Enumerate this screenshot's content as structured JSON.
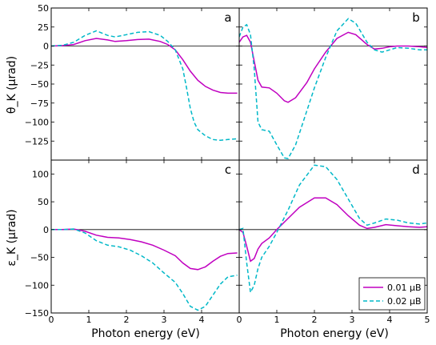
{
  "chart_data": [
    {
      "panel": "a",
      "type": "line",
      "ylabel": "θ_K (μrad)",
      "xlabel": "",
      "xlim": [
        0,
        5
      ],
      "ylim": [
        -150,
        50
      ],
      "xticks": [
        "0",
        "1",
        "2",
        "3",
        "4"
      ],
      "yticks": [
        "50",
        "25",
        "0",
        "−25",
        "−50",
        "−75",
        "−100",
        "−125"
      ],
      "series": [
        {
          "name": "0.01 μB",
          "color": "#c000c0",
          "style": "solid",
          "x": [
            0,
            0.3,
            0.6,
            0.9,
            1.2,
            1.5,
            1.7,
            2.0,
            2.3,
            2.6,
            2.9,
            3.1,
            3.3,
            3.5,
            3.7,
            3.9,
            4.1,
            4.3,
            4.5,
            4.7,
            4.95
          ],
          "y": [
            0,
            0.5,
            2,
            7,
            10,
            8,
            6,
            7,
            8.5,
            9,
            6,
            2,
            -5,
            -18,
            -33,
            -45,
            -53,
            -58,
            -61,
            -62,
            -62
          ]
        },
        {
          "name": "0.02 μB",
          "color": "#00b8c8",
          "style": "dashed",
          "x": [
            0,
            0.3,
            0.6,
            0.9,
            1.2,
            1.5,
            1.7,
            2.0,
            2.3,
            2.6,
            2.9,
            3.1,
            3.3,
            3.5,
            3.6,
            3.7,
            3.8,
            3.9,
            4.1,
            4.3,
            4.5,
            4.7,
            4.95
          ],
          "y": [
            0,
            1,
            5,
            14,
            20,
            14,
            12,
            15,
            18,
            19,
            14,
            6,
            -5,
            -30,
            -55,
            -82,
            -100,
            -110,
            -118,
            -123,
            -124,
            -123,
            -122
          ]
        }
      ]
    },
    {
      "panel": "b",
      "type": "line",
      "ylabel": "",
      "xlabel": "",
      "xlim": [
        0,
        5
      ],
      "ylim": [
        -150,
        50
      ],
      "xticks": [
        "0",
        "1",
        "2",
        "3",
        "4",
        "5"
      ],
      "yticks": [],
      "series": [
        {
          "name": "0.01 μB",
          "color": "#c000c0",
          "style": "solid",
          "x": [
            0,
            0.1,
            0.2,
            0.3,
            0.4,
            0.5,
            0.6,
            0.8,
            1.0,
            1.2,
            1.3,
            1.5,
            1.8,
            2.0,
            2.3,
            2.6,
            2.9,
            3.1,
            3.4,
            3.6,
            3.8,
            4.0,
            4.2,
            4.5,
            4.8,
            5.0
          ],
          "y": [
            5,
            12,
            14,
            5,
            -20,
            -45,
            -54,
            -55,
            -62,
            -72,
            -74,
            -68,
            -48,
            -30,
            -8,
            10,
            18,
            15,
            2,
            -4,
            -3,
            -1,
            0,
            0,
            -1,
            -2
          ]
        },
        {
          "name": "0.02 μB",
          "color": "#00b8c8",
          "style": "dashed",
          "x": [
            0,
            0.1,
            0.2,
            0.3,
            0.4,
            0.5,
            0.6,
            0.8,
            1.0,
            1.2,
            1.3,
            1.5,
            1.8,
            2.0,
            2.3,
            2.6,
            2.9,
            3.1,
            3.4,
            3.6,
            3.8,
            4.0,
            4.2,
            4.5,
            4.8,
            5.0
          ],
          "y": [
            12,
            25,
            28,
            15,
            -30,
            -100,
            -110,
            -112,
            -130,
            -147,
            -148,
            -130,
            -85,
            -55,
            -15,
            20,
            36,
            30,
            5,
            -5,
            -8,
            -5,
            -2,
            -3,
            -5,
            -5
          ]
        }
      ]
    },
    {
      "panel": "c",
      "type": "line",
      "ylabel": "ε_K (μrad)",
      "xlabel": "Photon energy (eV)",
      "xlim": [
        0,
        5
      ],
      "ylim": [
        -150,
        125
      ],
      "xticks": [
        "0",
        "1",
        "2",
        "3",
        "4"
      ],
      "yticks": [
        "100",
        "50",
        "0",
        "−50",
        "−100",
        "−150"
      ],
      "series": [
        {
          "name": "0.01 μB",
          "color": "#c000c0",
          "style": "solid",
          "x": [
            0,
            0.3,
            0.6,
            0.9,
            1.2,
            1.5,
            1.8,
            2.1,
            2.4,
            2.7,
            3.0,
            3.3,
            3.5,
            3.7,
            3.9,
            4.1,
            4.3,
            4.5,
            4.7,
            4.95
          ],
          "y": [
            0,
            0,
            1,
            -3,
            -10,
            -14,
            -15,
            -18,
            -22,
            -28,
            -37,
            -47,
            -60,
            -70,
            -72,
            -67,
            -57,
            -48,
            -43,
            -42
          ]
        },
        {
          "name": "0.02 μB",
          "color": "#00b8c8",
          "style": "dashed",
          "x": [
            0,
            0.3,
            0.6,
            0.9,
            1.2,
            1.5,
            1.8,
            2.1,
            2.4,
            2.7,
            3.0,
            3.3,
            3.5,
            3.7,
            3.9,
            4.1,
            4.3,
            4.5,
            4.7,
            4.95
          ],
          "y": [
            0,
            0,
            1,
            -6,
            -20,
            -28,
            -31,
            -37,
            -47,
            -60,
            -78,
            -95,
            -115,
            -138,
            -145,
            -138,
            -118,
            -98,
            -85,
            -82
          ]
        }
      ]
    },
    {
      "panel": "d",
      "type": "line",
      "ylabel": "",
      "xlabel": "Photon energy (eV)",
      "xlim": [
        0,
        5
      ],
      "ylim": [
        -150,
        125
      ],
      "xticks": [
        "0",
        "1",
        "2",
        "3",
        "4",
        "5"
      ],
      "yticks": [],
      "series": [
        {
          "name": "0.01 μB",
          "color": "#c000c0",
          "style": "solid",
          "x": [
            0,
            0.1,
            0.2,
            0.3,
            0.4,
            0.5,
            0.6,
            0.8,
            1.0,
            1.3,
            1.6,
            2.0,
            2.3,
            2.6,
            2.9,
            3.2,
            3.4,
            3.6,
            3.9,
            4.2,
            4.5,
            4.8,
            5.0
          ],
          "y": [
            0,
            -5,
            -30,
            -57,
            -52,
            -35,
            -25,
            -15,
            0,
            20,
            40,
            57,
            57,
            45,
            25,
            8,
            2,
            4,
            9,
            7,
            5,
            4,
            5
          ]
        },
        {
          "name": "0.02 μB",
          "color": "#00b8c8",
          "style": "dashed",
          "x": [
            0,
            0.1,
            0.2,
            0.3,
            0.4,
            0.5,
            0.6,
            0.8,
            1.0,
            1.3,
            1.6,
            2.0,
            2.3,
            2.6,
            2.9,
            3.2,
            3.4,
            3.6,
            3.9,
            4.2,
            4.5,
            4.8,
            5.0
          ],
          "y": [
            0,
            2,
            -60,
            -113,
            -100,
            -70,
            -50,
            -30,
            -5,
            35,
            80,
            116,
            113,
            90,
            55,
            20,
            8,
            12,
            19,
            17,
            12,
            10,
            12
          ]
        }
      ]
    }
  ],
  "panel_labels": [
    "a",
    "b",
    "c",
    "d"
  ],
  "legend": {
    "placement": "lower-right of panel d",
    "entries": [
      {
        "label": "0.01 μB",
        "color": "#c000c0",
        "style": "solid"
      },
      {
        "label": "0.02 μB",
        "color": "#00b8c8",
        "style": "dashed"
      }
    ]
  }
}
